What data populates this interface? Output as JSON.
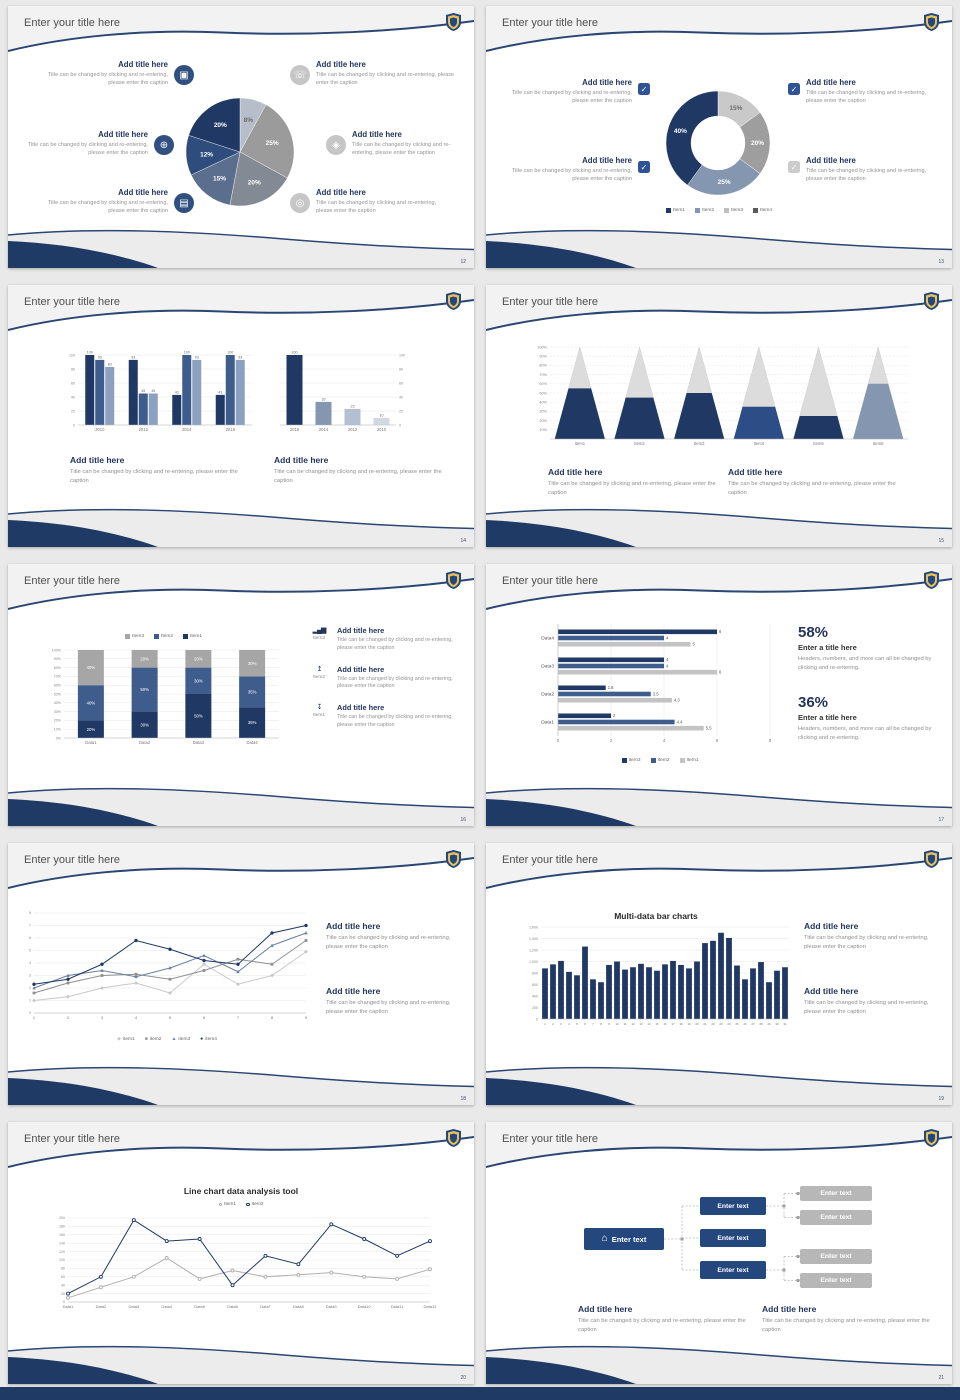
{
  "common": {
    "slide_title": "Enter your title here",
    "block_title": "Add title here",
    "caption": "Title can be changed by clicking and re-entering, please enter the caption",
    "enter_text": "Enter text"
  },
  "icons": {
    "monitor": "▣",
    "phone": "☏",
    "car": "⊕",
    "lock": "◈",
    "book": "▤",
    "bike": "◎",
    "chart": "▂▄▆",
    "upload": "↥",
    "download": "↧",
    "home": "⌂",
    "check": "✓"
  },
  "slides": [
    {
      "page": "12"
    },
    {
      "page": "13"
    },
    {
      "page": "14"
    },
    {
      "page": "15"
    },
    {
      "page": "16"
    },
    {
      "page": "17",
      "stats": [
        {
          "value": "58%",
          "title": "Enter a title here",
          "caption": "Headers, numbers, and more can all be changed by clicking and re-entering."
        },
        {
          "value": "36%",
          "title": "Enter a title here",
          "caption": "Headers, numbers, and more can all be changed by clicking and re-entering."
        }
      ]
    },
    {
      "page": "18"
    },
    {
      "page": "19",
      "chart_title": "Multi-data bar charts"
    },
    {
      "page": "20",
      "chart_title": "Line chart data analysis tool"
    },
    {
      "page": "21"
    }
  ],
  "chart_data": [
    {
      "id": "category-pie",
      "type": "pie",
      "title": "",
      "slices": [
        {
          "label": "8%",
          "value": 8,
          "color": "#b7bec9",
          "labelColor": "#6a6a6a"
        },
        {
          "label": "25%",
          "value": 25,
          "color": "#9b9b9b"
        },
        {
          "label": "20%",
          "value": 20,
          "color": "#848a94"
        },
        {
          "label": "15%",
          "value": 15,
          "color": "#5b6e8e"
        },
        {
          "label": "12%",
          "value": 12,
          "color": "#2e4d7d"
        },
        {
          "label": "20%",
          "value": 20,
          "color": "#1f3864"
        }
      ]
    },
    {
      "id": "share-donut",
      "type": "pie",
      "slices": [
        {
          "label": "15%",
          "value": 15,
          "color": "#c9c9c9",
          "labelColor": "#6a6a6a"
        },
        {
          "label": "20%",
          "value": 20,
          "color": "#9e9e9e"
        },
        {
          "label": "25%",
          "value": 25,
          "color": "#8496b0"
        },
        {
          "label": "40%",
          "value": 40,
          "color": "#1f3864"
        }
      ],
      "legend": [
        {
          "label": "Item1",
          "color": "#1f3864"
        },
        {
          "label": "Item2",
          "color": "#8496b0"
        },
        {
          "label": "Item3",
          "color": "#bfbfbf"
        },
        {
          "label": "Item4",
          "color": "#595959"
        }
      ]
    },
    {
      "id": "year-bars-grouped",
      "type": "bars",
      "categories": [
        "2010",
        "2012",
        "2014",
        "2016"
      ],
      "series": [
        {
          "color": "#1f3864",
          "values": [
            100,
            93,
            43,
            43
          ]
        },
        {
          "color": "#3f5d8c",
          "values": [
            93,
            45,
            100,
            100
          ]
        },
        {
          "color": "#8ba1bf",
          "values": [
            83,
            45,
            93,
            93
          ]
        }
      ],
      "ymax": 100,
      "yticks": [
        0,
        20,
        40,
        60,
        80,
        100
      ],
      "valueLabels": true
    },
    {
      "id": "year-bars-single",
      "type": "bars",
      "categories": [
        "2016",
        "2014",
        "2012",
        "2010"
      ],
      "series": [
        {
          "colors": [
            "#1f3864",
            "#8496b0",
            "#b4c0d2",
            "#d3d9e3"
          ],
          "values": [
            100,
            33,
            23,
            10
          ]
        }
      ],
      "ymax": 100,
      "yticks": [
        0,
        20,
        40,
        60,
        80,
        100
      ],
      "axis": "right",
      "valueLabels": true
    },
    {
      "id": "cone-chart",
      "type": "cones",
      "categories": [
        "Item1",
        "Item2",
        "Item3",
        "Item4",
        "Item5",
        "Item6"
      ],
      "values": [
        55,
        45,
        50,
        35,
        25,
        60
      ],
      "colors": [
        "#1f3864",
        "#1f3864",
        "#1f3864",
        "#2c4d86",
        "#1f3864",
        "#8496b0"
      ],
      "ymax": 100,
      "yticks": [
        10,
        20,
        30,
        40,
        50,
        60,
        70,
        80,
        90,
        100
      ]
    },
    {
      "id": "stacked-percent",
      "type": "stacked",
      "categories": [
        "Data1",
        "Data2",
        "Data3",
        "Data4"
      ],
      "series": [
        {
          "name": "Item1",
          "color": "#1f3864",
          "values": [
            20,
            30,
            50,
            35
          ]
        },
        {
          "name": "Item2",
          "color": "#3f5d8c",
          "values": [
            40,
            50,
            30,
            35
          ]
        },
        {
          "name": "Item3",
          "color": "#a6a6a6",
          "values": [
            40,
            20,
            20,
            30
          ]
        }
      ],
      "legend": [
        {
          "label": "Item3",
          "color": "#a6a6a6"
        },
        {
          "label": "Item2",
          "color": "#3f5d8c"
        },
        {
          "label": "Item1",
          "color": "#1f3864"
        }
      ]
    },
    {
      "id": "hbar-compare",
      "type": "hbars",
      "categories": [
        "Data4",
        "Data3",
        "Data2",
        "Data1"
      ],
      "series": [
        {
          "name": "Item3",
          "color": "#1f3864",
          "values": [
            6,
            4,
            1.8,
            2
          ]
        },
        {
          "name": "Item2",
          "color": "#3f5d8c",
          "values": [
            4,
            4,
            3.5,
            4.4
          ]
        },
        {
          "name": "Item1",
          "color": "#c3c3c3",
          "values": [
            5,
            6,
            4.3,
            5.5
          ]
        }
      ],
      "xmax": 8,
      "xticks": [
        0,
        2,
        4,
        6,
        8
      ],
      "legend": [
        {
          "label": "Item3",
          "color": "#1f3864"
        },
        {
          "label": "Item2",
          "color": "#3f5d8c"
        },
        {
          "label": "Item1",
          "color": "#c3c3c3"
        }
      ]
    },
    {
      "id": "four-lines",
      "type": "line",
      "x": [
        "1",
        "2",
        "3",
        "4",
        "5",
        "6",
        "7",
        "8",
        "9"
      ],
      "ymax": 8,
      "yticks": [
        0,
        1,
        2,
        3,
        4,
        5,
        6,
        7,
        8
      ],
      "series": [
        {
          "name": "item1",
          "color": "#c9c9c9",
          "marker": "diamond",
          "marker_char": "◆",
          "values": [
            1,
            1.3,
            2,
            2.4,
            1.6,
            3.9,
            2.3,
            3,
            4.9
          ]
        },
        {
          "name": "item2",
          "color": "#8f8f8f",
          "marker": "square",
          "marker_char": "■",
          "values": [
            1.6,
            2.4,
            3,
            3.1,
            2.7,
            3.4,
            4.3,
            3.9,
            5.8
          ]
        },
        {
          "name": "item3",
          "color": "#6b7f9e",
          "marker": "triangle",
          "marker_char": "▲",
          "values": [
            2,
            3,
            3.4,
            2.9,
            3.6,
            4.6,
            3.3,
            5.4,
            6.4
          ]
        },
        {
          "name": "item4",
          "color": "#1f3864",
          "marker": "circle",
          "marker_char": "●",
          "values": [
            2.3,
            2.7,
            3.9,
            5.8,
            5.1,
            4.2,
            3.9,
            6.4,
            7
          ]
        }
      ]
    },
    {
      "id": "multi-bar",
      "type": "bars",
      "title": "Multi-data bar charts",
      "categories": [
        "1",
        "2",
        "3",
        "4",
        "5",
        "6",
        "7",
        "8",
        "9",
        "10",
        "11",
        "12",
        "13",
        "14",
        "15",
        "16",
        "17",
        "18",
        "19",
        "20",
        "21",
        "22",
        "23",
        "24",
        "25",
        "26",
        "27",
        "28",
        "29",
        "30",
        "31"
      ],
      "series": [
        {
          "color": "#1f3864",
          "values": [
            880,
            950,
            1010,
            820,
            760,
            1260,
            690,
            640,
            940,
            1000,
            860,
            900,
            960,
            900,
            840,
            950,
            1010,
            940,
            880,
            1000,
            1320,
            1360,
            1500,
            1410,
            930,
            690,
            880,
            990,
            640,
            840,
            900
          ]
        }
      ],
      "ymax": 1600,
      "yticks": [
        0,
        200,
        400,
        600,
        800,
        1000,
        1200,
        1400,
        1600
      ],
      "ylabels": [
        "0",
        "200",
        "400",
        "600",
        "800",
        "1,000",
        "1,200",
        "1,400",
        "1,600"
      ]
    },
    {
      "id": "two-lines",
      "type": "line",
      "title": "Line chart data analysis tool",
      "x": [
        "Data1",
        "Data2",
        "Data3",
        "Data4",
        "Data5",
        "Data6",
        "Data7",
        "Data8",
        "Data9",
        "Data10",
        "Data11",
        "Data12"
      ],
      "ymax": 200,
      "yticks": [
        0,
        20,
        40,
        60,
        80,
        100,
        120,
        140,
        160,
        180,
        200
      ],
      "series": [
        {
          "name": "Item1",
          "color": "#b0b0b0",
          "marker": "circle",
          "open": true,
          "values": [
            10,
            35,
            60,
            105,
            55,
            75,
            60,
            65,
            70,
            60,
            55,
            78
          ]
        },
        {
          "name": "Item2",
          "color": "#1f3864",
          "marker": "circle",
          "open": true,
          "values": [
            20,
            60,
            195,
            145,
            150,
            40,
            110,
            90,
            185,
            150,
            110,
            145
          ]
        }
      ]
    }
  ]
}
